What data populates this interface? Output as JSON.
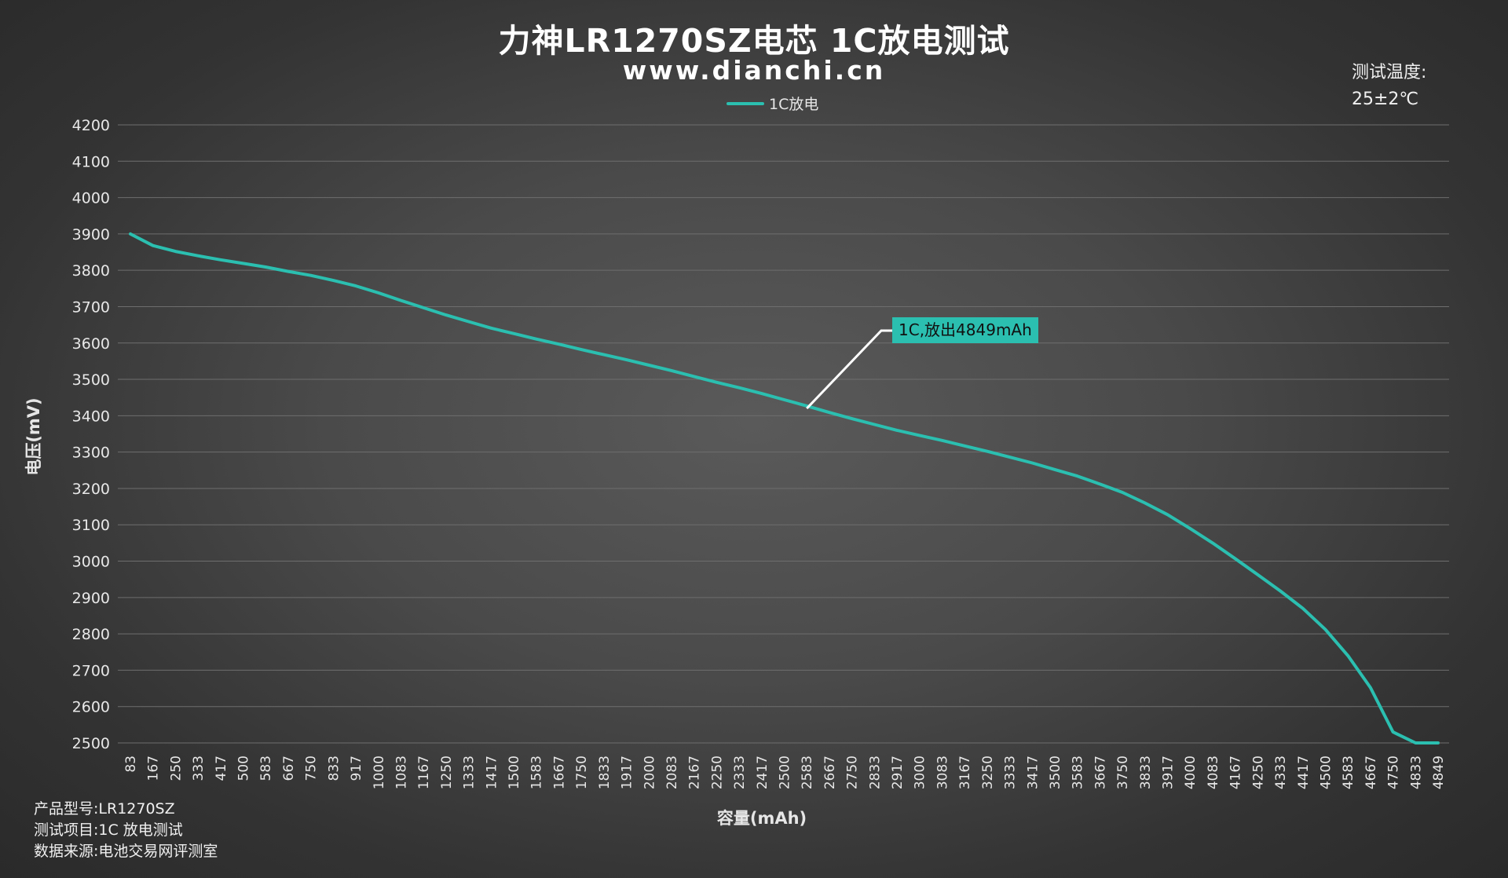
{
  "header": {
    "title": "力神LR1270SZ电芯 1C放电测试",
    "subtitle": "www.dianchi.cn"
  },
  "temperature": {
    "label": "测试温度:",
    "value": "25±2℃"
  },
  "info": {
    "model": "产品型号:LR1270SZ",
    "item": "测试项目:1C 放电测试",
    "source": "数据来源:电池交易网评测室"
  },
  "colors": {
    "series": "#2bbfb0",
    "grid": "#6e6e6e",
    "annotation_bg": "#2bbfb0"
  },
  "chart_data": {
    "type": "line",
    "xlabel": "容量(mAh)",
    "ylabel": "电压(mV)",
    "ylim": [
      2500,
      4200
    ],
    "yticks": [
      2500,
      2600,
      2700,
      2800,
      2900,
      3000,
      3100,
      3200,
      3300,
      3400,
      3500,
      3600,
      3700,
      3800,
      3900,
      4000,
      4100,
      4200
    ],
    "xticks": [
      83,
      167,
      250,
      333,
      417,
      500,
      583,
      667,
      750,
      833,
      917,
      1000,
      1083,
      1167,
      1250,
      1333,
      1417,
      1500,
      1583,
      1667,
      1750,
      1833,
      1917,
      2000,
      2083,
      2167,
      2250,
      2333,
      2417,
      2500,
      2583,
      2667,
      2750,
      2833,
      2917,
      3000,
      3083,
      3167,
      3250,
      3333,
      3417,
      3500,
      3583,
      3667,
      3750,
      3833,
      3917,
      4000,
      4083,
      4167,
      4250,
      4333,
      4417,
      4500,
      4583,
      4667,
      4750,
      4833,
      4849
    ],
    "grid": true,
    "legend_position": "top-center",
    "series": [
      {
        "name": "1C放电",
        "x": [
          83,
          167,
          250,
          333,
          417,
          500,
          583,
          667,
          750,
          833,
          917,
          1000,
          1083,
          1167,
          1250,
          1333,
          1417,
          1500,
          1583,
          1667,
          1750,
          1833,
          1917,
          2000,
          2083,
          2167,
          2250,
          2333,
          2417,
          2500,
          2583,
          2667,
          2750,
          2833,
          2917,
          3000,
          3083,
          3167,
          3250,
          3333,
          3417,
          3500,
          3583,
          3667,
          3750,
          3833,
          3917,
          4000,
          4083,
          4167,
          4250,
          4333,
          4417,
          4500,
          4583,
          4667,
          4750,
          4833,
          4849
        ],
        "values": [
          3900,
          3868,
          3852,
          3840,
          3829,
          3819,
          3809,
          3797,
          3786,
          3772,
          3757,
          3738,
          3717,
          3697,
          3677,
          3659,
          3641,
          3626,
          3611,
          3597,
          3582,
          3568,
          3554,
          3539,
          3524,
          3508,
          3492,
          3477,
          3461,
          3444,
          3427,
          3409,
          3392,
          3376,
          3360,
          3346,
          3332,
          3317,
          3302,
          3286,
          3270,
          3252,
          3234,
          3212,
          3189,
          3160,
          3128,
          3090,
          3050,
          3007,
          2963,
          2918,
          2870,
          2812,
          2740,
          2652,
          2530,
          2500,
          2500
        ]
      }
    ],
    "annotation": {
      "text": "1C,放出4849mAh",
      "x": 2583,
      "y": 3420
    }
  }
}
